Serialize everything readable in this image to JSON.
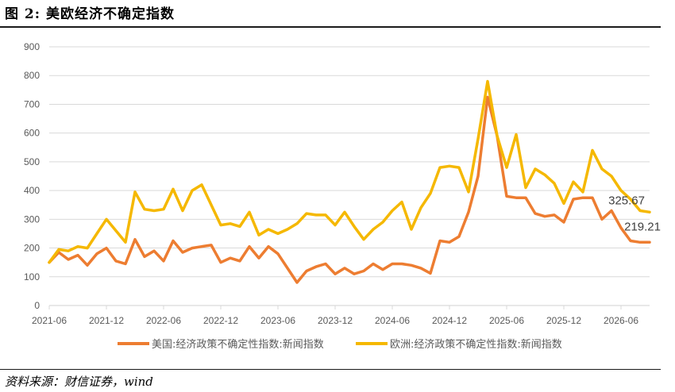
{
  "header": {
    "title": "图 2:  美欧经济不确定指数"
  },
  "footer": {
    "source": "资料来源：财信证券，wind"
  },
  "colors": {
    "us": "#ed7d31",
    "eu": "#f5b800",
    "axis": "#d9d9d9",
    "text": "#595959"
  },
  "chart_data": {
    "type": "line",
    "ylim": [
      0,
      900
    ],
    "yticks": [
      0,
      100,
      200,
      300,
      400,
      500,
      600,
      700,
      800,
      900
    ],
    "xticks": [
      "2021-06",
      "2021-12",
      "2022-06",
      "2022-12",
      "2023-06",
      "2023-12",
      "2024-06",
      "2024-12",
      "2025-06",
      "2025-12",
      "2026-06"
    ],
    "x": [
      "2021-06",
      "2021-07",
      "2021-08",
      "2021-09",
      "2021-10",
      "2021-11",
      "2021-12",
      "2022-01",
      "2022-02",
      "2022-03",
      "2022-04",
      "2022-05",
      "2022-06",
      "2022-07",
      "2022-08",
      "2022-09",
      "2022-10",
      "2022-11",
      "2022-12",
      "2023-01",
      "2023-02",
      "2023-03",
      "2023-04",
      "2023-05",
      "2023-06",
      "2023-07",
      "2023-08",
      "2023-09",
      "2023-10",
      "2023-11",
      "2023-12",
      "2024-01",
      "2024-02",
      "2024-03",
      "2024-04",
      "2024-05",
      "2024-06",
      "2024-07",
      "2024-08",
      "2024-09",
      "2024-10",
      "2024-11",
      "2024-12",
      "2025-01",
      "2025-02",
      "2025-03",
      "2025-04",
      "2025-05",
      "2025-06",
      "2025-07",
      "2025-08",
      "2025-09",
      "2025-10",
      "2025-11",
      "2025-12",
      "2026-01",
      "2026-02",
      "2026-03",
      "2026-04",
      "2026-05",
      "2026-06",
      "2026-07",
      "2026-08",
      "2026-09"
    ],
    "series": [
      {
        "name": "美国:经济政策不确定性指数:新闻指数",
        "color": "#ed7d31",
        "values": [
          150,
          185,
          160,
          175,
          140,
          180,
          200,
          155,
          145,
          230,
          170,
          190,
          155,
          225,
          185,
          200,
          205,
          210,
          150,
          165,
          155,
          205,
          165,
          205,
          180,
          130,
          80,
          120,
          135,
          145,
          110,
          130,
          110,
          120,
          145,
          125,
          145,
          145,
          140,
          130,
          112,
          225,
          220,
          240,
          325,
          450,
          725,
          590,
          380,
          375,
          375,
          320,
          310,
          315,
          290,
          370,
          375,
          375,
          300,
          330,
          270,
          225,
          220,
          220
        ],
        "end_label": "219.21"
      },
      {
        "name": "欧洲:经济政策不确定性指数:新闻指数",
        "color": "#f5b800",
        "values": [
          150,
          195,
          190,
          205,
          200,
          250,
          300,
          260,
          220,
          395,
          335,
          330,
          335,
          405,
          330,
          400,
          420,
          350,
          280,
          285,
          275,
          325,
          245,
          265,
          250,
          265,
          285,
          320,
          315,
          315,
          280,
          325,
          275,
          230,
          265,
          290,
          330,
          360,
          265,
          340,
          390,
          480,
          485,
          480,
          395,
          580,
          780,
          590,
          480,
          595,
          410,
          475,
          455,
          425,
          355,
          430,
          395,
          540,
          475,
          450,
          400,
          370,
          330,
          325
        ],
        "end_label": "325.67"
      }
    ]
  }
}
